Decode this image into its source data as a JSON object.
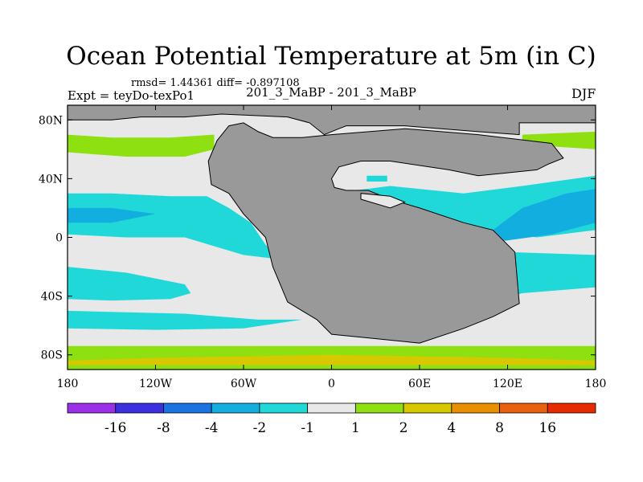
{
  "header": {
    "title": "Ocean Potential Temperature at 5m (in C)",
    "stats": "rmsd= 1.44361 diff= -0.897108",
    "left_label": "Expt = teyDo-texPo1",
    "center_label": "201_3_MaBP - 201_3_MaBP",
    "right_label": "DJF"
  },
  "chart_data": {
    "type": "heatmap",
    "title": "Ocean Potential Temperature at 5m (in C)",
    "xlabel": "",
    "ylabel": "",
    "xlim": [
      -180,
      180
    ],
    "ylim": [
      -90,
      90
    ],
    "x_ticks": [
      {
        "value": -180,
        "label": "180"
      },
      {
        "value": -120,
        "label": "120W"
      },
      {
        "value": -60,
        "label": "60W"
      },
      {
        "value": 0,
        "label": "0"
      },
      {
        "value": 60,
        "label": "60E"
      },
      {
        "value": 120,
        "label": "120E"
      },
      {
        "value": 180,
        "label": "180"
      }
    ],
    "y_ticks": [
      {
        "value": 80,
        "label": "80N"
      },
      {
        "value": 40,
        "label": "40N"
      },
      {
        "value": 0,
        "label": "0"
      },
      {
        "value": -40,
        "label": "40S"
      },
      {
        "value": -80,
        "label": "80S"
      }
    ],
    "colorbar": {
      "levels": [
        "-16",
        "-8",
        "-4",
        "-2",
        "-1",
        "1",
        "2",
        "4",
        "8",
        "16"
      ],
      "colors": [
        "#9b30e8",
        "#3b2fe0",
        "#1a73e0",
        "#12aee0",
        "#20d8d8",
        "#e8e8e8",
        "#8ee010",
        "#d8c800",
        "#e89000",
        "#e86010",
        "#e82a00"
      ]
    },
    "land_color": "#999999",
    "ocean_base_color": "#e8e8e8",
    "regions": [
      {
        "level": "1 to 2",
        "color": "#8ee010",
        "points": [
          [
            -180,
            -74
          ],
          [
            180,
            -74
          ],
          [
            180,
            -90
          ],
          [
            -180,
            -90
          ]
        ]
      },
      {
        "level": "2 to 4",
        "color": "#d8c800",
        "points": [
          [
            -180,
            -84
          ],
          [
            -120,
            -82
          ],
          [
            -60,
            -81
          ],
          [
            0,
            -80
          ],
          [
            60,
            -81
          ],
          [
            120,
            -82
          ],
          [
            180,
            -84
          ],
          [
            180,
            -87
          ],
          [
            -180,
            -87
          ]
        ]
      },
      {
        "level": "-2 to -1",
        "color": "#20d8d8",
        "points": [
          [
            -180,
            -20
          ],
          [
            -140,
            -24
          ],
          [
            -100,
            -32
          ],
          [
            -96,
            -38
          ],
          [
            -110,
            -42
          ],
          [
            -150,
            -43
          ],
          [
            -180,
            -42
          ]
        ]
      },
      {
        "level": "-2 to -1",
        "color": "#20d8d8",
        "points": [
          [
            -180,
            30
          ],
          [
            -150,
            30
          ],
          [
            -110,
            28
          ],
          [
            -85,
            28
          ],
          [
            -70,
            20
          ],
          [
            -55,
            10
          ],
          [
            -45,
            -5
          ],
          [
            -35,
            -15
          ],
          [
            -60,
            -12
          ],
          [
            -100,
            0
          ],
          [
            -140,
            0
          ],
          [
            -180,
            2
          ]
        ]
      },
      {
        "level": "-2 to -1",
        "color": "#20d8d8",
        "points": [
          [
            -180,
            -50
          ],
          [
            -100,
            -52
          ],
          [
            -50,
            -56
          ],
          [
            -20,
            -56
          ],
          [
            -60,
            -62
          ],
          [
            -120,
            -63
          ],
          [
            -180,
            -62
          ]
        ]
      },
      {
        "level": "-2 to -1",
        "color": "#20d8d8",
        "points": [
          [
            0,
            -40
          ],
          [
            40,
            -30
          ],
          [
            90,
            -20
          ],
          [
            120,
            -10
          ],
          [
            180,
            -12
          ],
          [
            180,
            -34
          ],
          [
            130,
            -38
          ],
          [
            100,
            -46
          ],
          [
            60,
            -52
          ],
          [
            20,
            -56
          ],
          [
            0,
            -56
          ]
        ]
      },
      {
        "level": "-2 to -1",
        "color": "#20d8d8",
        "points": [
          [
            0,
            30
          ],
          [
            40,
            35
          ],
          [
            90,
            30
          ],
          [
            130,
            35
          ],
          [
            180,
            42
          ],
          [
            180,
            5
          ],
          [
            140,
            0
          ],
          [
            100,
            5
          ],
          [
            60,
            8
          ],
          [
            40,
            10
          ],
          [
            20,
            18
          ],
          [
            0,
            22
          ]
        ]
      },
      {
        "level": "-4 to -2",
        "color": "#12aee0",
        "points": [
          [
            -180,
            20
          ],
          [
            -150,
            20
          ],
          [
            -120,
            16
          ],
          [
            -150,
            10
          ],
          [
            -180,
            10
          ]
        ]
      },
      {
        "level": "-4 to -2",
        "color": "#12aee0",
        "points": [
          [
            40,
            15
          ],
          [
            80,
            10
          ],
          [
            110,
            5
          ],
          [
            130,
            20
          ],
          [
            160,
            30
          ],
          [
            180,
            33
          ],
          [
            180,
            10
          ],
          [
            150,
            2
          ],
          [
            120,
            -2
          ],
          [
            90,
            -5
          ],
          [
            60,
            -5
          ],
          [
            42,
            5
          ]
        ]
      },
      {
        "level": "1 to 2",
        "color": "#8ee010",
        "points": [
          [
            -180,
            70
          ],
          [
            -150,
            68
          ],
          [
            -110,
            68
          ],
          [
            -80,
            70
          ],
          [
            -80,
            60
          ],
          [
            -100,
            55
          ],
          [
            -140,
            55
          ],
          [
            -180,
            58
          ]
        ]
      },
      {
        "level": "1 to 2",
        "color": "#8ee010",
        "points": [
          [
            130,
            70
          ],
          [
            180,
            72
          ],
          [
            180,
            60
          ],
          [
            150,
            62
          ],
          [
            130,
            66
          ]
        ]
      },
      {
        "level": "-2 to -1",
        "color": "#20d8d8",
        "points": [
          [
            24,
            42
          ],
          [
            38,
            42
          ],
          [
            38,
            38
          ],
          [
            24,
            38
          ]
        ]
      }
    ],
    "land_masses": [
      {
        "name": "north-polar-land",
        "points": [
          [
            -180,
            90
          ],
          [
            180,
            90
          ],
          [
            180,
            78
          ],
          [
            150,
            78
          ],
          [
            128,
            78
          ],
          [
            128,
            70
          ],
          [
            100,
            72
          ],
          [
            50,
            76
          ],
          [
            10,
            76
          ],
          [
            5,
            74
          ],
          [
            -5,
            70
          ],
          [
            -15,
            78
          ],
          [
            -30,
            82
          ],
          [
            -75,
            84
          ],
          [
            -100,
            82
          ],
          [
            -130,
            82
          ],
          [
            -150,
            80
          ],
          [
            -180,
            80
          ]
        ]
      },
      {
        "name": "pangea",
        "points": [
          [
            -82,
            36
          ],
          [
            -70,
            30
          ],
          [
            -60,
            16
          ],
          [
            -45,
            0
          ],
          [
            -40,
            -20
          ],
          [
            -30,
            -44
          ],
          [
            -20,
            -50
          ],
          [
            -10,
            -56
          ],
          [
            0,
            -66
          ],
          [
            20,
            -68
          ],
          [
            60,
            -72
          ],
          [
            90,
            -62
          ],
          [
            110,
            -54
          ],
          [
            128,
            -45
          ],
          [
            125,
            -10
          ],
          [
            110,
            5
          ],
          [
            90,
            10
          ],
          [
            60,
            20
          ],
          [
            40,
            26
          ],
          [
            25,
            32
          ],
          [
            10,
            32
          ],
          [
            2,
            34
          ],
          [
            0,
            40
          ],
          [
            5,
            48
          ],
          [
            20,
            52
          ],
          [
            40,
            52
          ],
          [
            80,
            46
          ],
          [
            100,
            42
          ],
          [
            120,
            44
          ],
          [
            140,
            46
          ],
          [
            148,
            50
          ],
          [
            158,
            54
          ],
          [
            150,
            64
          ],
          [
            100,
            70
          ],
          [
            50,
            74
          ],
          [
            0,
            70
          ],
          [
            -20,
            68
          ],
          [
            -40,
            68
          ],
          [
            -50,
            72
          ],
          [
            -60,
            78
          ],
          [
            -70,
            76
          ],
          [
            -78,
            66
          ],
          [
            -84,
            52
          ]
        ]
      }
    ],
    "ocean_holes": [
      {
        "name": "tethys-inner-sea",
        "points": [
          [
            20,
            26
          ],
          [
            40,
            20
          ],
          [
            50,
            24
          ],
          [
            40,
            28
          ],
          [
            20,
            30
          ]
        ]
      }
    ]
  }
}
